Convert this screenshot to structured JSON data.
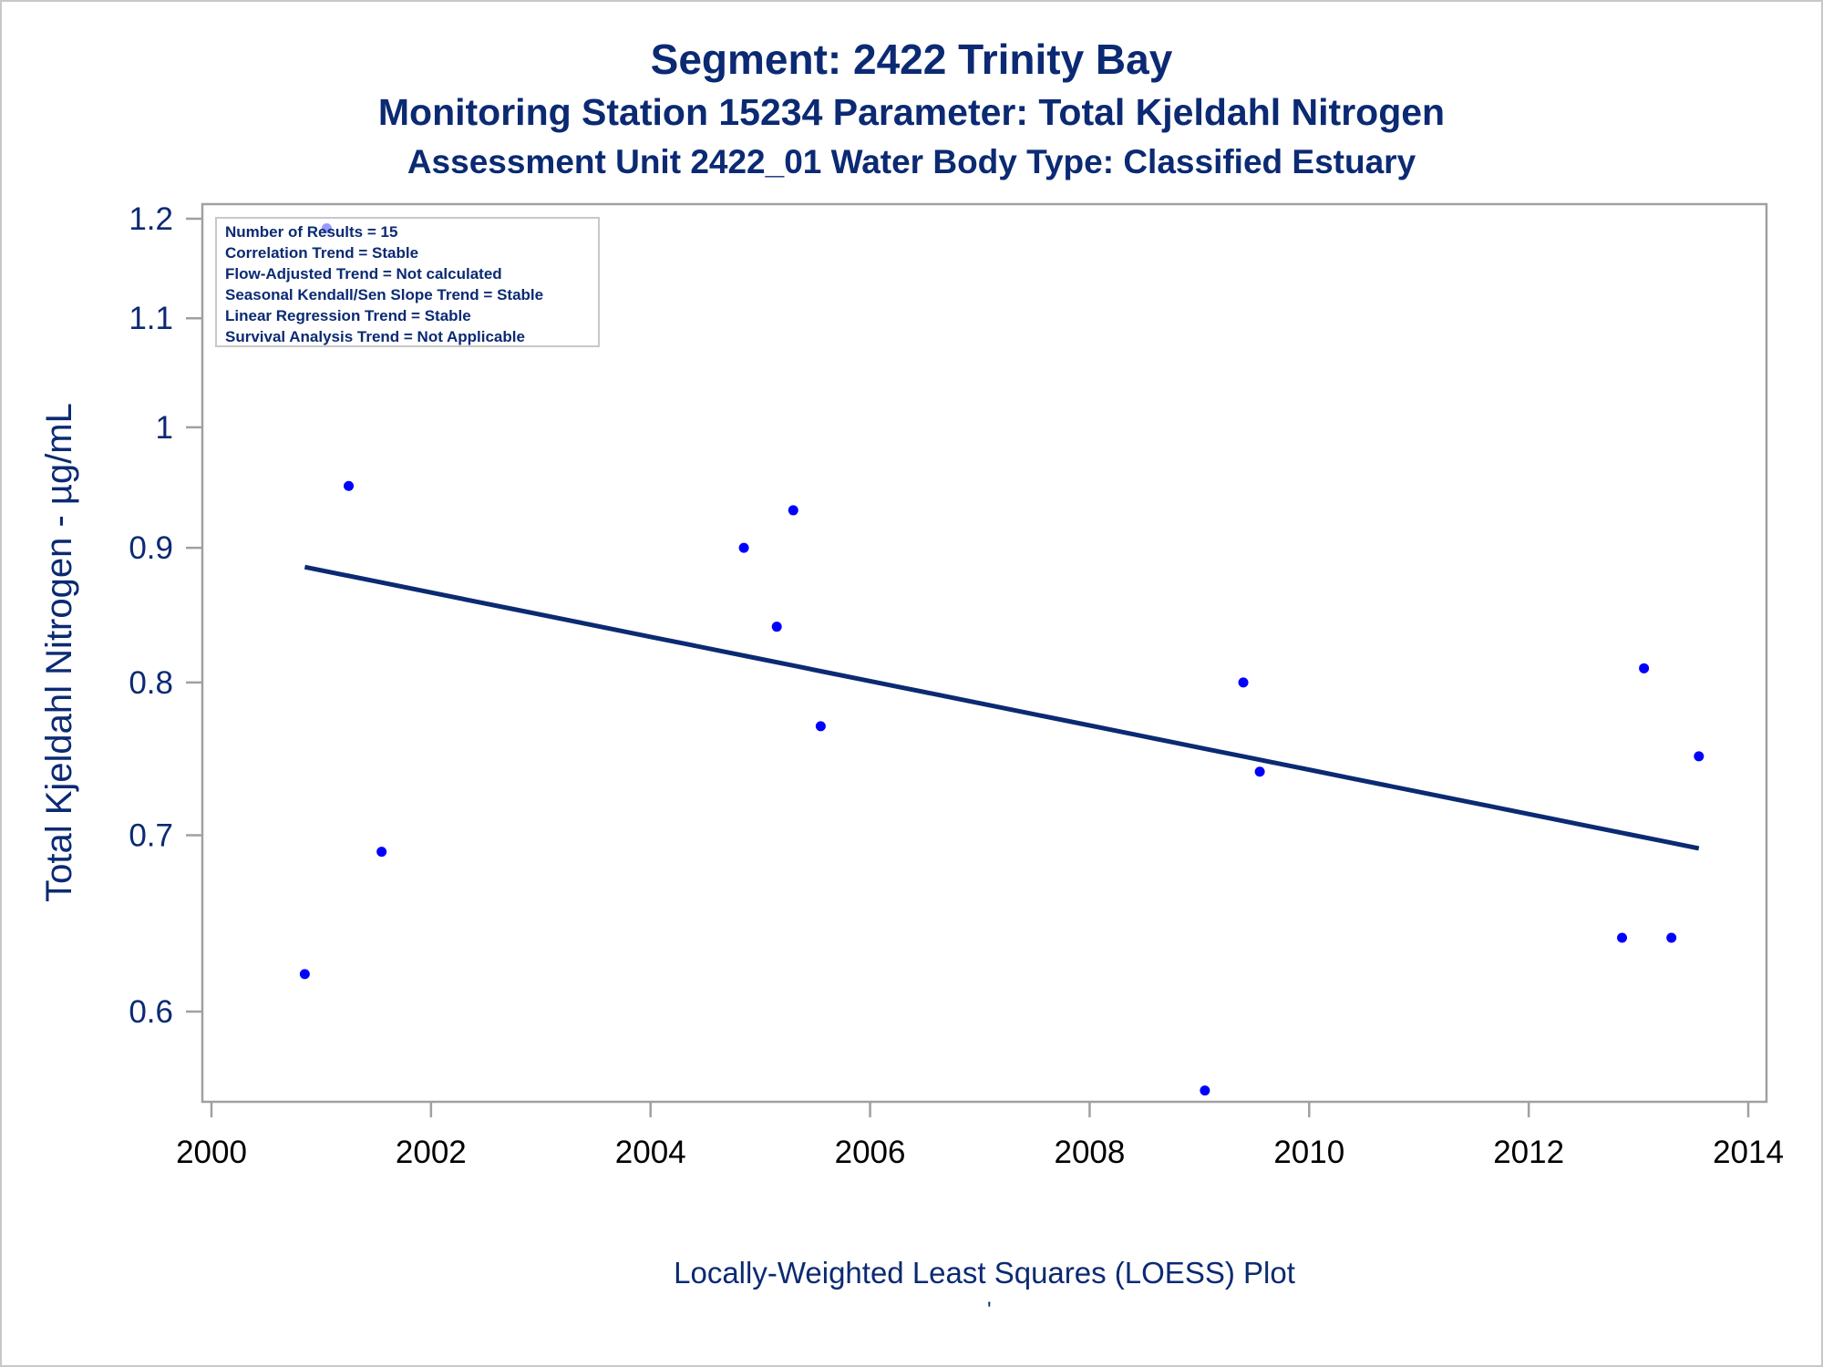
{
  "titles": {
    "line1": "Segment: 2422  Trinity Bay",
    "line2": "Monitoring Station 15234 Parameter: Total Kjeldahl Nitrogen",
    "line3": "Assessment Unit 2422_01   Water Body Type: Classified Estuary"
  },
  "footnote": "Locally-Weighted Least Squares (LOESS) Plot",
  "footnote_mark": "'",
  "legend": [
    "Number of Results = 15",
    "Correlation Trend = Stable",
    "Flow-Adjusted Trend = Not calculated",
    "Seasonal Kendall/Sen Slope Trend = Stable",
    "Linear Regression Trend = Stable",
    "Survival Analysis Trend = Not Applicable"
  ],
  "colors": {
    "points": "#0000ff",
    "line": "#0b2a73",
    "text": "#0b2a73",
    "axis": "#a0a0a0"
  },
  "chart_data": {
    "type": "scatter",
    "title": "Segment: 2422  Trinity Bay",
    "xlabel": "",
    "ylabel": "Total Kjeldahl Nitrogen -  µg/mL",
    "y_scale": "log",
    "xlim": [
      2000,
      2014
    ],
    "ylim": [
      0.55,
      1.22
    ],
    "x_ticks": [
      2000,
      2002,
      2004,
      2006,
      2008,
      2010,
      2012,
      2014
    ],
    "y_ticks": [
      0.6,
      0.7,
      0.8,
      0.9,
      1,
      1.1,
      1.2
    ],
    "y_tick_labels": [
      "0.6",
      "0.7",
      "0.8",
      "0.9",
      "1",
      "1.1",
      "1.2"
    ],
    "grid": false,
    "legend_position": "top-left",
    "points": [
      {
        "x": 2000.85,
        "y": 0.62
      },
      {
        "x": 2001.05,
        "y": 1.19
      },
      {
        "x": 2001.25,
        "y": 0.95
      },
      {
        "x": 2001.55,
        "y": 0.69
      },
      {
        "x": 2004.85,
        "y": 0.9
      },
      {
        "x": 2005.15,
        "y": 0.84
      },
      {
        "x": 2005.3,
        "y": 0.93
      },
      {
        "x": 2005.55,
        "y": 0.77
      },
      {
        "x": 2009.05,
        "y": 0.56
      },
      {
        "x": 2009.4,
        "y": 0.8
      },
      {
        "x": 2009.55,
        "y": 0.74
      },
      {
        "x": 2012.85,
        "y": 0.64
      },
      {
        "x": 2013.05,
        "y": 0.81
      },
      {
        "x": 2013.3,
        "y": 0.64
      },
      {
        "x": 2013.55,
        "y": 0.75
      }
    ],
    "trend_line": {
      "x": [
        2000.85,
        2013.55
      ],
      "y": [
        0.885,
        0.692
      ]
    }
  }
}
